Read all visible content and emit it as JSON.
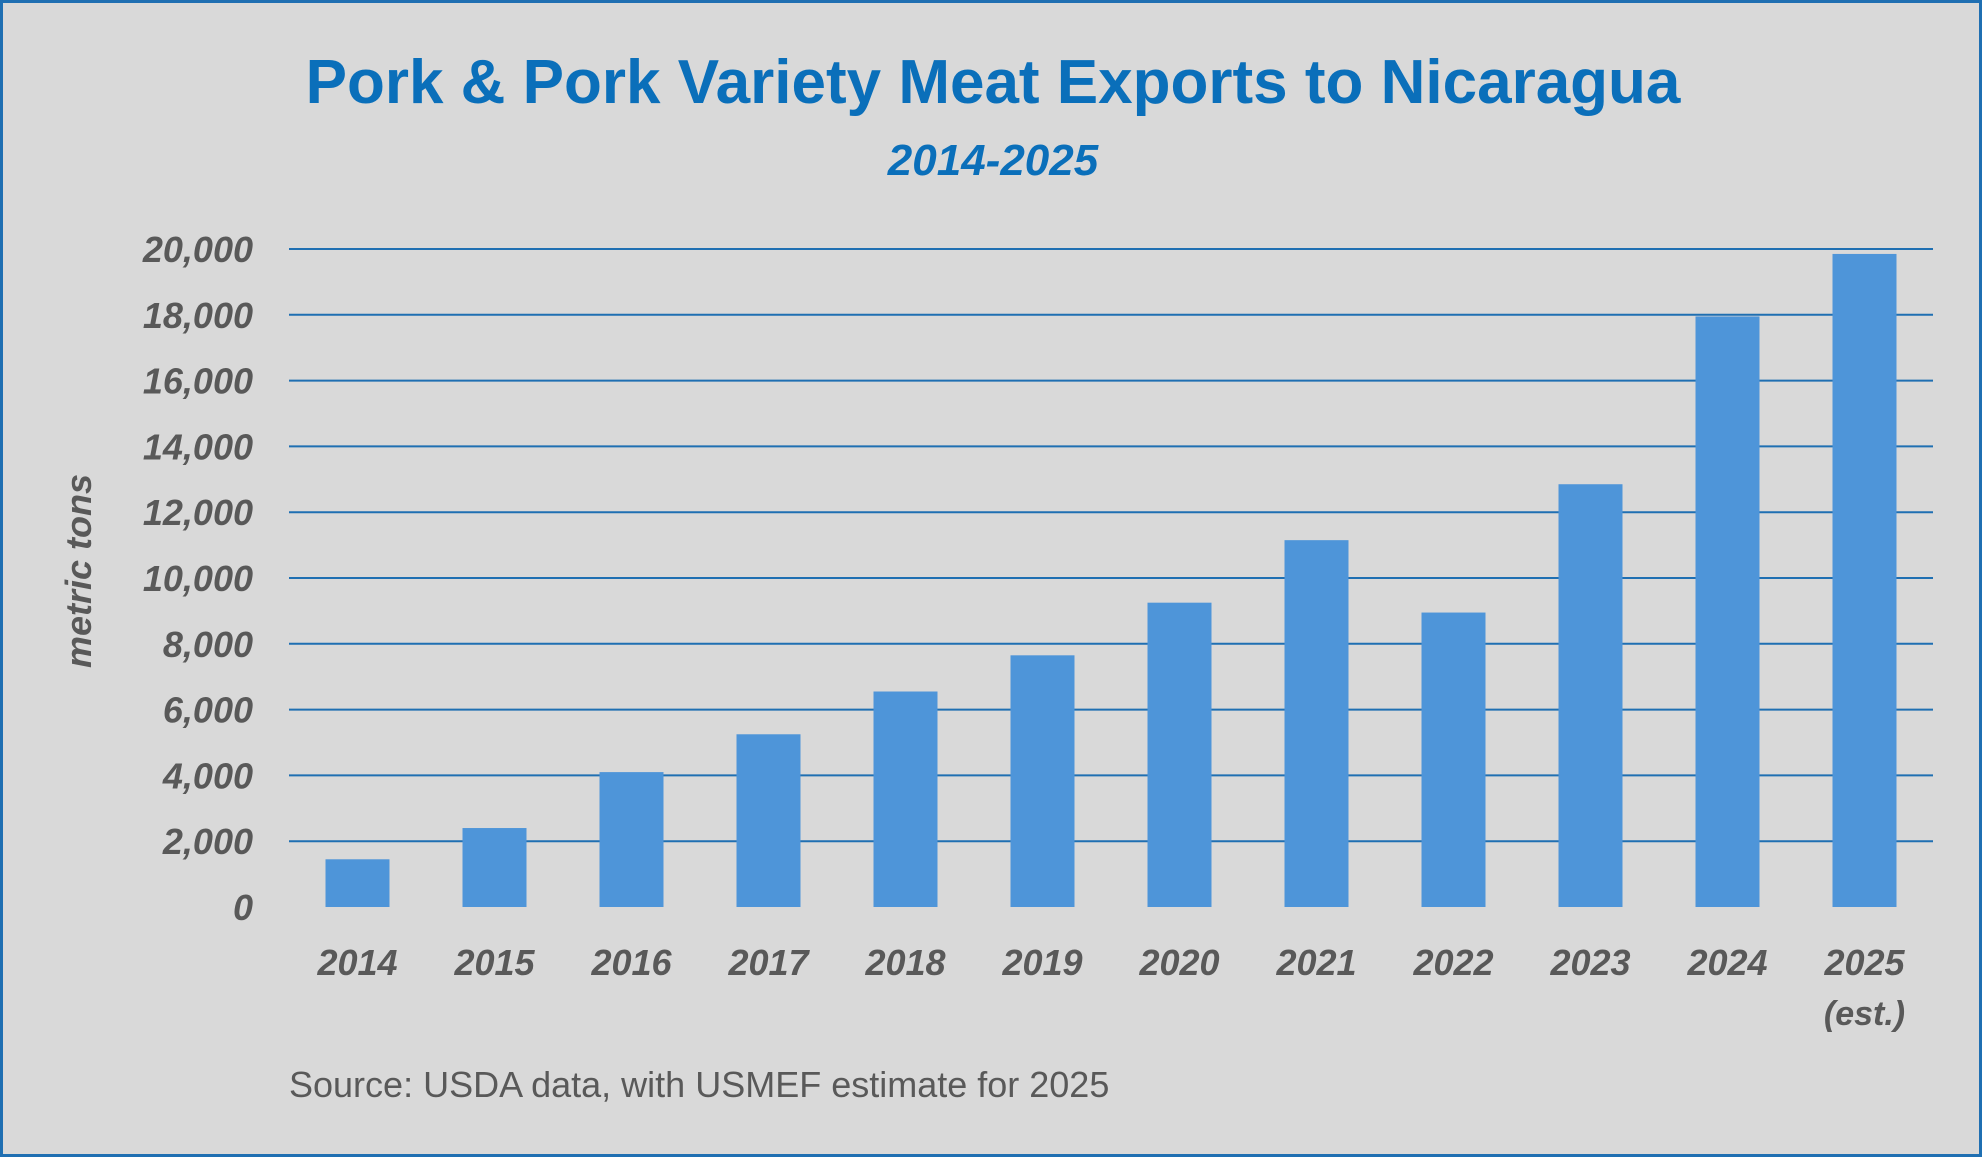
{
  "chart_data": {
    "type": "bar",
    "title": "Pork & Pork Variety Meat Exports to Nicaragua",
    "subtitle": "2014-2025",
    "ylabel": "metric tons",
    "xlabel": "",
    "categories": [
      "2014",
      "2015",
      "2016",
      "2017",
      "2018",
      "2019",
      "2020",
      "2021",
      "2022",
      "2023",
      "2024",
      "2025"
    ],
    "category_notes": [
      "",
      "",
      "",
      "",
      "",
      "",
      "",
      "",
      "",
      "",
      "",
      "(est.)"
    ],
    "values": [
      1450,
      2400,
      4100,
      5250,
      6550,
      7650,
      9250,
      11150,
      8950,
      12850,
      17950,
      19850
    ],
    "ylim": [
      0,
      20000
    ],
    "yticks": [
      0,
      2000,
      4000,
      6000,
      8000,
      10000,
      12000,
      14000,
      16000,
      18000,
      20000
    ],
    "ytick_labels": [
      "0",
      "2,000",
      "4,000",
      "6,000",
      "8,000",
      "10,000",
      "12,000",
      "14,000",
      "16,000",
      "18,000",
      "20,000"
    ],
    "grid": true,
    "legend": "none",
    "bar_color": "#4e95d9",
    "grid_color": "#1f6fb2",
    "title_color": "#0a6fba",
    "source": "Source: USDA data, with USMEF estimate for 2025"
  }
}
